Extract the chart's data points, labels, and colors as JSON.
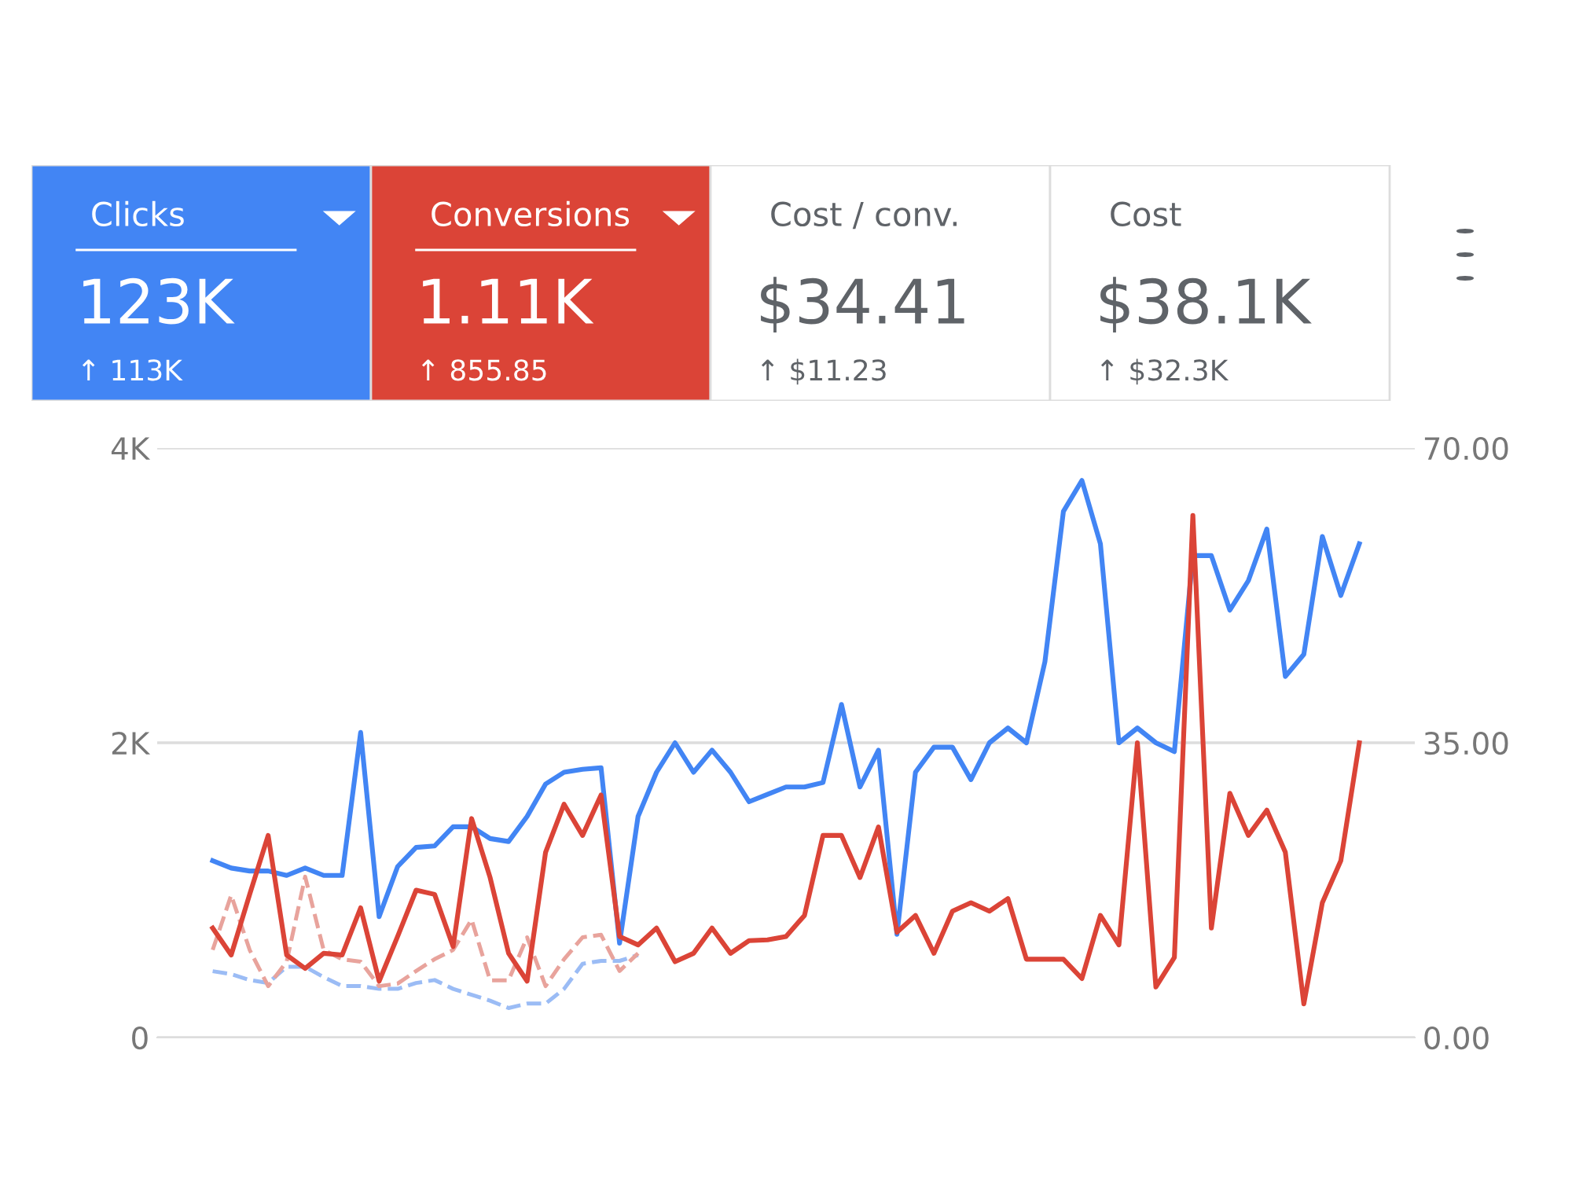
{
  "chart_data": [
    {
      "type": "other",
      "colors": [
        "#4285f4",
        "#db4437",
        "#ffffff",
        "#ffffff"
      ],
      "annotations": [
        "Clicks",
        "123K",
        "↑ 113K",
        "Conversions",
        "1.11K",
        "↑ 855.85",
        "Cost / conv.",
        "$34.41",
        "↑ $11.23",
        "Cost",
        "$38.1K",
        "↑ $32.3K"
      ]
    },
    {
      "type": "line",
      "categories": [
        null,
        null,
        null,
        null,
        null,
        null,
        null,
        null,
        null,
        null,
        null,
        null,
        null,
        null,
        null,
        null,
        null,
        null,
        null,
        null,
        null,
        null,
        null,
        null,
        null,
        null,
        null,
        null,
        null,
        null,
        null,
        null,
        null,
        null,
        null,
        null,
        null,
        null,
        null,
        null,
        null,
        null,
        null,
        null,
        null,
        null,
        null,
        null,
        null,
        null,
        null,
        null,
        null,
        null,
        null,
        null,
        null,
        null,
        null,
        null,
        null,
        null,
        null
      ],
      "series": [
        {
          "color": "#9bbcf5",
          "line_style": "dashed",
          "values": [
            450,
            430,
            390,
            370,
            480,
            480,
            410,
            350,
            350,
            330,
            330,
            370,
            390,
            330,
            290,
            250,
            200,
            230,
            230,
            330,
            500,
            520,
            520,
            560,
            null,
            null,
            null,
            null,
            null,
            null,
            null,
            null,
            null,
            null,
            null,
            null,
            null,
            null,
            null,
            null,
            null,
            null,
            null,
            null,
            null,
            null,
            null,
            null,
            null,
            null,
            null,
            null,
            null,
            null,
            null,
            null,
            null,
            null,
            null,
            null,
            null,
            null,
            null
          ]
        },
        {
          "color": "#e8a39c",
          "line_style": "dashed",
          "axis": "y2",
          "values": [
            10.4,
            16.9,
            10.4,
            6.1,
            9.0,
            19.1,
            10.4,
            9.3,
            9.0,
            6.1,
            6.4,
            7.9,
            9.3,
            10.4,
            14,
            6.8,
            6.8,
            11.9,
            6.1,
            9.3,
            11.9,
            12.2,
            7.9,
            10,
            null,
            null,
            null,
            null,
            null,
            null,
            null,
            null,
            null,
            null,
            null,
            null,
            null,
            null,
            null,
            null,
            null,
            null,
            null,
            null,
            null,
            null,
            null,
            null,
            null,
            null,
            null,
            null,
            null,
            null,
            null,
            null,
            null,
            null,
            null,
            null,
            null,
            null,
            null
          ]
        },
        {
          "color": "#4285f4",
          "line_style": "solid",
          "values": [
            1200,
            1150,
            1130,
            1130,
            1100,
            1150,
            1100,
            1100,
            2070,
            820,
            1160,
            1290,
            1300,
            1430,
            1430,
            1350,
            1330,
            1500,
            1720,
            1800,
            1820,
            1830,
            640,
            1500,
            1800,
            2000,
            1800,
            1950,
            1800,
            1600,
            1650,
            1700,
            1700,
            1730,
            2260,
            1700,
            1950,
            700,
            1800,
            1970,
            1970,
            1750,
            2000,
            2100,
            2000,
            2550,
            3570,
            3780,
            3350,
            2000,
            2100,
            2000,
            1940,
            3270,
            3270,
            2900,
            3100,
            3450,
            2450,
            2600,
            3400,
            3000,
            3350
          ]
        },
        {
          "color": "#db4437",
          "line_style": "solid",
          "axis": "y2",
          "values": [
            13,
            9.8,
            17,
            24,
            9.8,
            8.2,
            10,
            9.8,
            15.4,
            6.7,
            12,
            17.5,
            17,
            10.8,
            26,
            19,
            10,
            6.7,
            22,
            27.7,
            24,
            28.8,
            12,
            11,
            13,
            9,
            10,
            13,
            10,
            11.5,
            11.6,
            12,
            14.5,
            24,
            24,
            19,
            25,
            12.5,
            14.5,
            10,
            15,
            16,
            15,
            16.5,
            9.3,
            9.3,
            9.3,
            7,
            14.5,
            11,
            35,
            6,
            9.5,
            62,
            13,
            29,
            24,
            27,
            22,
            4,
            16,
            21,
            35
          ]
        }
      ],
      "ylim": [
        0,
        4000
      ],
      "yticks": [
        {
          "value": 0,
          "label": "0"
        },
        {
          "value": 2000,
          "label": "2K"
        },
        {
          "value": 4000,
          "label": "4K"
        }
      ],
      "y2lim": [
        0,
        70
      ],
      "y2ticks": [
        {
          "value": 0,
          "label": "0.00"
        },
        {
          "value": 35,
          "label": "35.00"
        },
        {
          "value": 70,
          "label": "70.00"
        }
      ],
      "grid": "y",
      "marker": "none"
    }
  ]
}
